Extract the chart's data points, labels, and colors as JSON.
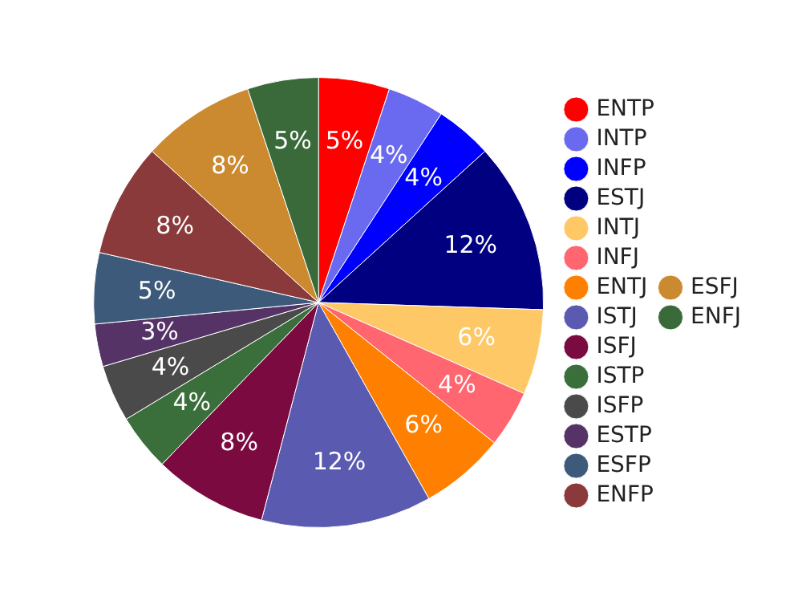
{
  "chart_data": {
    "type": "pie",
    "categories": [
      "ENTP",
      "INTP",
      "INFP",
      "ESTJ",
      "INTJ",
      "INFJ",
      "ENTJ",
      "ISTJ",
      "ISFJ",
      "ISTP",
      "ISFP",
      "ESTP",
      "ESFP",
      "ENFP",
      "ESFJ",
      "ENFJ"
    ],
    "values": [
      5,
      4,
      4,
      12,
      6,
      4,
      6,
      12,
      8,
      4,
      4,
      3,
      5,
      8,
      8,
      5
    ],
    "value_labels": [
      "5%",
      "4%",
      "4%",
      "12%",
      "6%",
      "4%",
      "6%",
      "12%",
      "8%",
      "4%",
      "4%",
      "3%",
      "5%",
      "8%",
      "8%",
      "5%"
    ],
    "colors": [
      "#ff0000",
      "#6a6af0",
      "#0000ff",
      "#000080",
      "#ffc866",
      "#ff6670",
      "#ff8000",
      "#5a5ab0",
      "#7a0a40",
      "#3a6e3a",
      "#4a4a4a",
      "#553366",
      "#3d5a7a",
      "#8a3a3a",
      "#cc8a30",
      "#3a6a3a"
    ],
    "legend": "right"
  }
}
